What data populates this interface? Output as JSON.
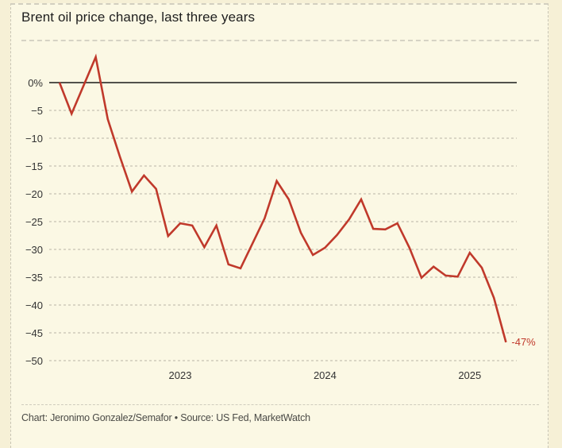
{
  "chart_data": {
    "type": "line",
    "title": "Brent oil price change, last three years",
    "xlabel": "",
    "ylabel": "",
    "x_tick_labels": [
      "2023",
      "2024",
      "2025"
    ],
    "x_tick_index": [
      10,
      22,
      34
    ],
    "y_tick_labels": [
      "0%",
      "−5",
      "−10",
      "−15",
      "−20",
      "−25",
      "−30",
      "−35",
      "−40",
      "−45",
      "−50"
    ],
    "y_ticks": [
      0,
      -5,
      -10,
      -15,
      -20,
      -25,
      -30,
      -35,
      -40,
      -45,
      -50
    ],
    "ylim": [
      -50,
      0
    ],
    "grid": true,
    "series": [
      {
        "name": "Brent oil price change (%)",
        "color": "#c0392b",
        "values": [
          0,
          -5.6,
          -0.5,
          4.6,
          -6.6,
          -13.3,
          -19.6,
          -16.7,
          -19.1,
          -27.6,
          -25.3,
          -25.7,
          -29.6,
          -25.7,
          -32.7,
          -33.4,
          -28.9,
          -24.4,
          -17.7,
          -21.0,
          -27.0,
          -31.0,
          -29.7,
          -27.4,
          -24.6,
          -21.0,
          -26.3,
          -26.4,
          -25.3,
          -29.7,
          -35.1,
          -33.1,
          -34.7,
          -34.9,
          -30.6,
          -33.3,
          -38.7,
          -46.7
        ]
      }
    ],
    "annotations": [
      {
        "text": "-47%",
        "point": "last"
      }
    ]
  },
  "footer": "Chart: Jeronimo Gonzalez/Semafor • Source: US Fed, MarketWatch",
  "colors": {
    "line": "#c0392b",
    "background": "#fbf8e4",
    "zero_line": "#1a1a1a",
    "grid": "#b8b5a6"
  }
}
